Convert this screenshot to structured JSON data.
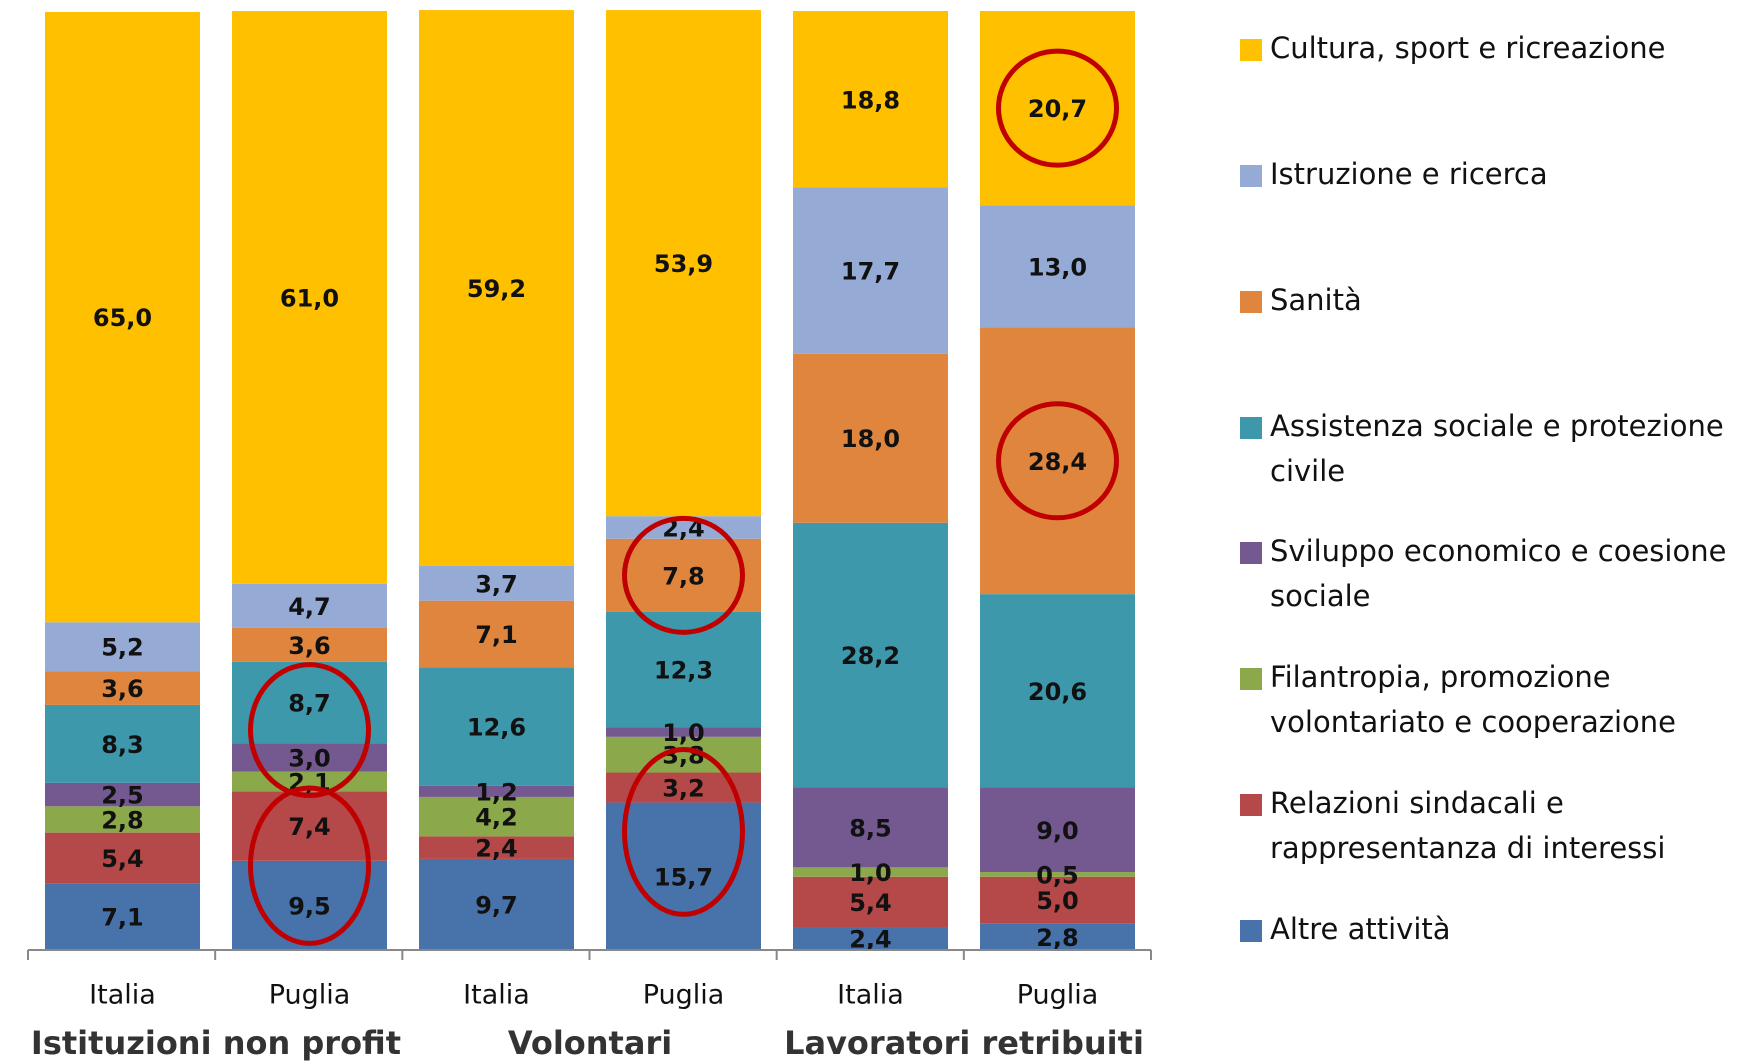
{
  "chart_data": {
    "type": "stacked_bar",
    "categories": [
      "Italia",
      "Puglia",
      "Italia",
      "Puglia",
      "Italia",
      "Puglia"
    ],
    "groups": [
      "Istituzioni non profit",
      "Volontari",
      "Lavoratori retribuiti"
    ],
    "ylim": [
      0,
      100
    ],
    "series": [
      {
        "name": "Cultura, sport e ricreazione",
        "color": "#ffc000",
        "values": [
          65.0,
          61.0,
          59.2,
          53.9,
          18.8,
          20.7
        ],
        "value_labels": [
          "65,0",
          "61,0",
          "59,2",
          "53,9",
          "18,8",
          "20,7"
        ]
      },
      {
        "name": "Istruzione e ricerca",
        "color": "#95aad4",
        "values": [
          5.2,
          4.7,
          3.7,
          2.4,
          17.7,
          13.0
        ],
        "value_labels": [
          "5,2",
          "4,7",
          "3,7",
          "2,4",
          "17,7",
          "13,0"
        ]
      },
      {
        "name": "Sanità",
        "color": "#df853e",
        "values": [
          3.6,
          3.6,
          7.1,
          7.8,
          18.0,
          28.4
        ],
        "value_labels": [
          "3,6",
          "3,6",
          "7,1",
          "7,8",
          "18,0",
          "28,4"
        ]
      },
      {
        "name": "Assistenza sociale e protezione civile",
        "color": "#3e98ab",
        "values": [
          8.3,
          8.7,
          12.6,
          12.3,
          28.2,
          20.6
        ],
        "value_labels": [
          "8,3",
          "8,7",
          "12,6",
          "12,3",
          "28,2",
          "20,6"
        ]
      },
      {
        "name": "Sviluppo economico e coesione sociale",
        "color": "#73598f",
        "values": [
          2.5,
          3.0,
          1.2,
          1.0,
          8.5,
          9.0
        ],
        "value_labels": [
          "2,5",
          "3,0",
          "1,2",
          "1,0",
          "8,5",
          "9,0"
        ]
      },
      {
        "name": "Filantropia, promozione volontariato e cooperazione",
        "color": "#8ba84b",
        "values": [
          2.8,
          2.1,
          4.2,
          3.8,
          1.0,
          0.5
        ],
        "value_labels": [
          "2,8",
          "2,1",
          "4,2",
          "3,8",
          "1,0",
          "0,5"
        ]
      },
      {
        "name": "Relazioni sindacali e rappresentanza di interessi",
        "color": "#b54848",
        "values": [
          5.4,
          7.4,
          2.4,
          3.2,
          5.4,
          5.0
        ],
        "value_labels": [
          "5,4",
          "7,4",
          "2,4",
          "3,2",
          "5,4",
          "5,0"
        ]
      },
      {
        "name": "Altre attività",
        "color": "#4773aa",
        "values": [
          7.1,
          9.5,
          9.7,
          15.7,
          2.4,
          2.8
        ],
        "value_labels": [
          "7,1",
          "9,5",
          "9,7",
          "15,7",
          "2,4",
          "2,8"
        ]
      }
    ],
    "highlights": [
      {
        "category": 1,
        "series": [
          3,
          4
        ]
      },
      {
        "category": 1,
        "series": [
          6,
          7
        ]
      },
      {
        "category": 3,
        "series": [
          2
        ]
      },
      {
        "category": 3,
        "series": [
          6,
          7
        ]
      },
      {
        "category": 5,
        "series": [
          0
        ]
      },
      {
        "category": 5,
        "series": [
          2
        ]
      }
    ],
    "highlight_color": "#c00000"
  }
}
